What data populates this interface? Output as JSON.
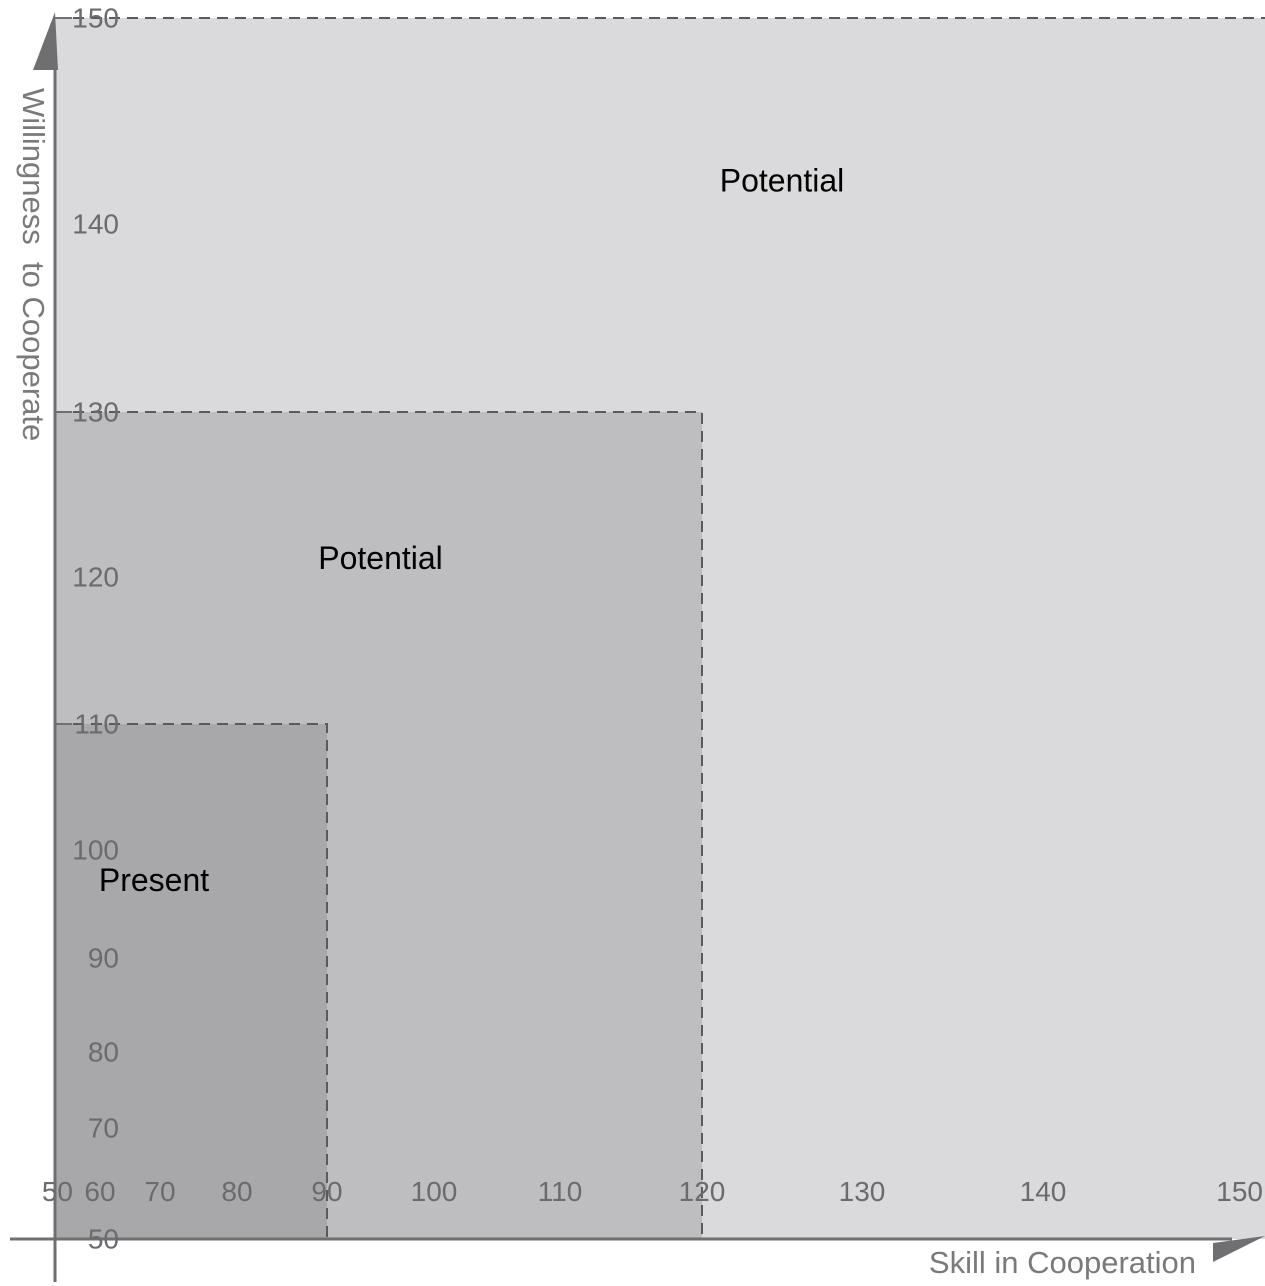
{
  "chart_data": {
    "type": "area",
    "xlabel": "Skill in Cooperation",
    "ylabel": "Willingness  to Cooperate",
    "xlim": [
      50,
      150
    ],
    "ylim": [
      50,
      150
    ],
    "x_ticks": [
      50,
      60,
      70,
      80,
      90,
      100,
      110,
      120,
      130,
      140,
      150
    ],
    "y_ticks": [
      50,
      70,
      80,
      90,
      100,
      110,
      120,
      130,
      140,
      150
    ],
    "grid": false,
    "regions": [
      {
        "label": "Potential",
        "x": [
          50,
          150
        ],
        "y": [
          50,
          150
        ],
        "color": "#dadadc"
      },
      {
        "label": "Potential",
        "x": [
          50,
          120
        ],
        "y": [
          50,
          130
        ],
        "color": "#bebec0"
      },
      {
        "label": "Present",
        "x": [
          50,
          90
        ],
        "y": [
          50,
          110
        ],
        "color": "#a8a8aa"
      }
    ]
  }
}
